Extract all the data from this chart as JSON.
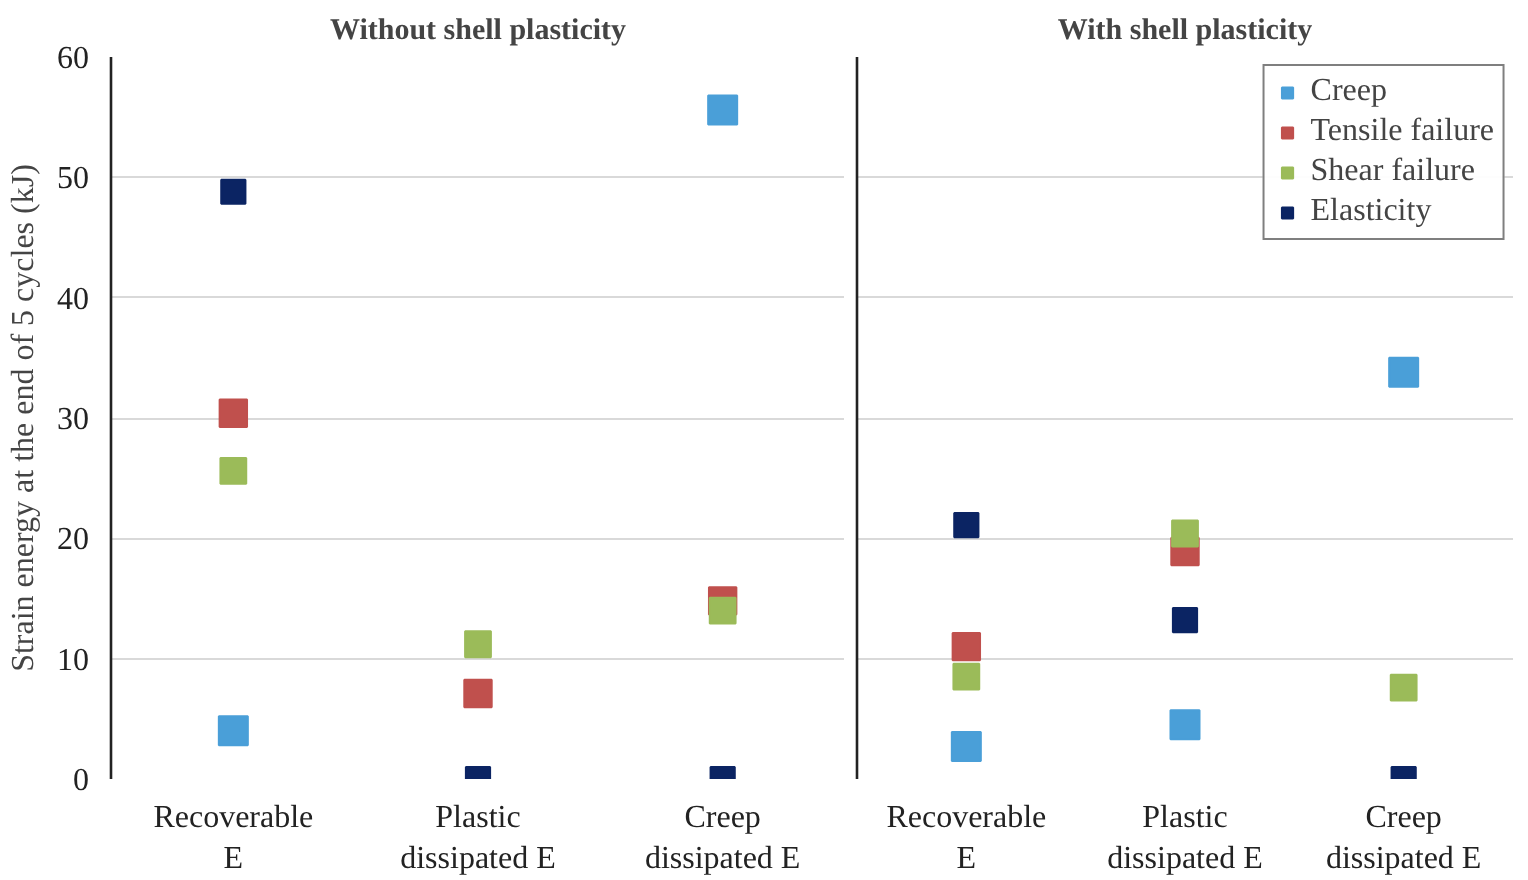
{
  "chart_data": [
    {
      "type": "scatter",
      "title": "Without shell plasticity",
      "ylabel": "Strain energy at the end of 5 cycles (kJ)",
      "categories": [
        "Recoverable\nE",
        "Plastic\ndissipated E",
        "Creep\ndissipated E"
      ],
      "series": [
        {
          "color": "#4a9fd8",
          "values": [
            4.0,
            null,
            55.6
          ]
        },
        {
          "color": "#c0504d",
          "values": [
            30.4,
            7.1,
            14.8
          ]
        },
        {
          "color": "#9bbb59",
          "values": [
            25.6,
            11.2,
            14.0
          ]
        },
        {
          "color": "#0b2463",
          "values": [
            48.8,
            0,
            0
          ]
        }
      ],
      "ylim": [
        0,
        60
      ],
      "yticks": [
        0,
        10,
        20,
        30,
        40,
        50,
        60
      ],
      "grid": "y",
      "marker": "square"
    },
    {
      "type": "scatter",
      "title": "With shell plasticity",
      "categories": [
        "Recoverable\nE",
        "Plastic\ndissipated E",
        "Creep\ndissipated E"
      ],
      "series": [
        {
          "name": "Creep",
          "color": "#4a9fd8",
          "values": [
            2.7,
            4.5,
            33.8
          ]
        },
        {
          "name": "Tensile failure",
          "color": "#c0504d",
          "values": [
            11.0,
            18.9,
            null
          ]
        },
        {
          "name": "Shear failure",
          "color": "#9bbb59",
          "values": [
            8.5,
            20.4,
            7.6
          ]
        },
        {
          "name": "Elasticity",
          "color": "#0b2463",
          "values": [
            21.1,
            13.2,
            0
          ]
        }
      ],
      "ylim": [
        0,
        60
      ],
      "yticks": [
        0,
        10,
        20,
        30,
        40,
        50,
        60
      ],
      "grid": "y",
      "legend": "top right",
      "marker": "square",
      "tick_labels": "x"
    }
  ]
}
